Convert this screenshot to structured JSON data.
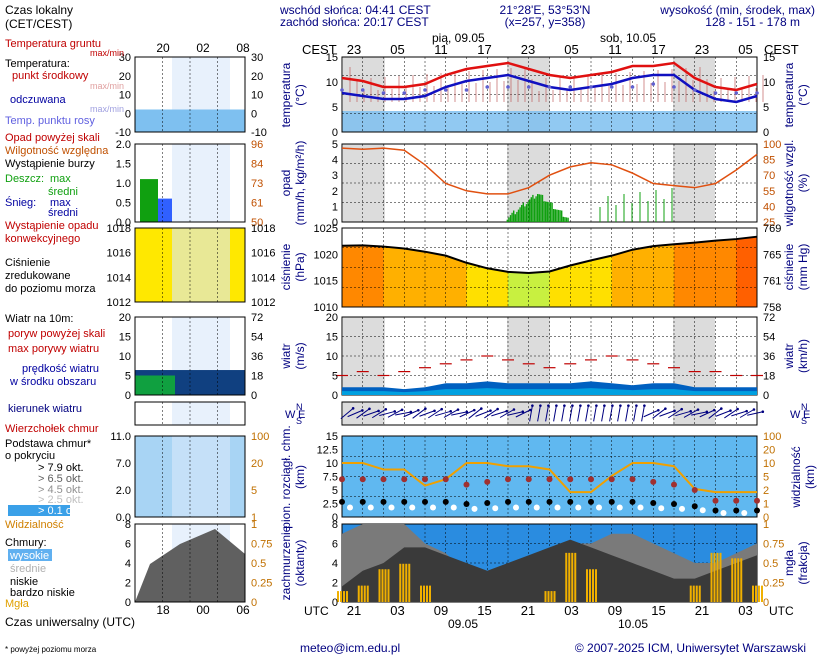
{
  "header": {
    "sunrise": "wschód słońca: 04:41 CEST",
    "sunset": "zachód słońca: 20:17 CEST",
    "coords": "21°28'E, 53°53'N",
    "grid": "(x=257,  y=358)",
    "elevation_label": "wysokość (min, środek, max)",
    "elevation_values": "128 - 151 - 178 m",
    "local_time_label": "Czas lokalny",
    "local_time_sub": "(CET/CEST)",
    "tz_left": "CEST",
    "tz_right": "CEST",
    "day1": "pią, 09.05",
    "day2": "sob, 10.05"
  },
  "footer": {
    "utc_label": "Czas uniwersalny (UTC)",
    "utc_left": "UTC",
    "utc_right": "UTC",
    "date1": "09.05",
    "date2": "10.05",
    "email": "meteo@icm.edu.pl",
    "copyright": "© 2007-2025 ICM, Uniwersytet Warszawski",
    "footnote": "* powyżej poziomu morza"
  },
  "colors": {
    "temperature": "#e01010",
    "dewpoint": "#1010c0",
    "ground": "#c01010",
    "precip_green": "#10a010",
    "pressure_yellow": "#ffe000",
    "pressure_orange": "#ff8000",
    "wind_blue": "#0060c0",
    "humidity": "#e05010",
    "night_shade": "#dcdcdc",
    "sky_blue": "#7ec0f0"
  },
  "legend": {
    "temp": {
      "ground": "Temperatura gruntu",
      "ground_sub": "max/min",
      "title": "Temperatura:",
      "mid": "punkt środkowy",
      "mid_sub": "max/min",
      "felt": "odczuwana",
      "felt_sub": "max/min",
      "dew": "Temp. punktu rosy"
    },
    "precip": {
      "above": "Opad powyżej skali",
      "rh": "Wilgotność względna",
      "storm": "Wystąpienie burzy",
      "rain": "Deszcz:",
      "rain_max": "max",
      "rain_mean": "średni",
      "snow": "Śnieg:",
      "snow_max": "max",
      "snow_mean": "średni",
      "conv1": "Wystąpienie opadu",
      "conv2": "konwekcyjnego"
    },
    "pressure": {
      "l1": "Ciśnienie",
      "l2": "zredukowane",
      "l3": "do poziomu morza"
    },
    "wind": {
      "title": "Wiatr na 10m:",
      "gust_above": "poryw powyżej skali",
      "gust": "max porywy wiatru",
      "mean1": "prędkość wiatru",
      "mean2": "w środku obszaru"
    },
    "dir": {
      "title": "kierunek wiatru"
    },
    "cloud": {
      "top": "Wierzchołek chmur",
      "base1": "Podstawa chmur*",
      "base2": "o pokryciu",
      "c79": "> 7.9 okt.",
      "c65": "> 6.5 okt.",
      "c45": "> 4.5 okt.",
      "c25": "> 2.5 okt.",
      "c01": "> 0.1 okt.",
      "vis": "Widzialność"
    },
    "clouds": {
      "title": "Chmury:",
      "high": "wysokie",
      "mid": "średnie",
      "low": "niskie",
      "vlow": "bardzo niskie",
      "fog": "Mgła"
    }
  },
  "axis_titles": {
    "temp_l": "temperatura",
    "temp_l2": "(°C)",
    "temp_r": "temperatura",
    "temp_r2": "(°C)",
    "precip_l": "opad",
    "precip_l2": "(mm/h, kg/m²/h)",
    "precip_r": "wilgotność wzgl.",
    "precip_r2": "(%)",
    "press_l": "ciśnienie",
    "press_l2": "(hPa)",
    "press_r": "ciśnienie",
    "press_r2": "(mm Hg)",
    "wind_l": "wiatr",
    "wind_l2": "(m/s)",
    "wind_r": "wiatr",
    "wind_r2": "(km/h)",
    "cloud_l": "pion. rozciągł. chm.",
    "cloud_l2": "(km)",
    "cloud_r": "widzialność",
    "cloud_r2": "(km)",
    "cov_l": "zachmurzenie",
    "cov_l2": "(oktanty)",
    "cov_r": "mgła",
    "cov_r2": "(frakcja)",
    "dir_l": "W",
    "dir_l2": "E",
    "dir_l3": "N",
    "dir_l4": "S"
  },
  "chart_data": [
    {
      "type": "line",
      "title": "temperatura",
      "x": [
        "18",
        "21",
        "00",
        "03",
        "06",
        "09",
        "12",
        "15",
        "18",
        "21",
        "00",
        "03",
        "06",
        "09",
        "12",
        "15",
        "18",
        "21",
        "00",
        "03",
        "06"
      ],
      "series": [
        {
          "name": "punkt środkowy",
          "values": [
            7,
            6,
            4,
            4,
            5,
            8,
            10,
            11,
            12,
            10,
            8,
            7,
            8,
            9,
            11,
            11,
            12,
            7,
            4,
            3,
            5
          ]
        },
        {
          "name": "odczuwana",
          "values": [
            2,
            1,
            0,
            0,
            1,
            4,
            6,
            7,
            8,
            6,
            4,
            3,
            4,
            5,
            7,
            8,
            8,
            3,
            0,
            -1,
            1
          ]
        },
        {
          "name": "Temp. punktu rosy",
          "values": [
            3,
            3,
            2,
            2,
            3,
            3,
            3,
            4,
            4,
            4,
            4,
            4,
            4,
            4,
            4,
            5,
            4,
            3,
            2,
            2,
            2
          ]
        }
      ],
      "ylim": [
        -10,
        30
      ],
      "ylim_r": [
        -10,
        30
      ],
      "yticks": [
        -10,
        -5,
        0,
        5,
        10,
        15,
        20,
        25,
        30
      ]
    },
    {
      "type": "bar",
      "title": "opad",
      "series": [
        {
          "name": "Wilgotność względna",
          "values": [
            96,
            95,
            96,
            94,
            80,
            62,
            55,
            52,
            52,
            58,
            70,
            78,
            82,
            80,
            72,
            62,
            60,
            58,
            62,
            75,
            90
          ]
        }
      ],
      "ylim": [
        0,
        5
      ],
      "ylim_r": [
        25,
        100
      ],
      "yticks": [
        0,
        1,
        2,
        3,
        4,
        5
      ],
      "yticks_r": [
        25,
        40,
        55,
        70,
        85,
        100
      ]
    },
    {
      "type": "area",
      "title": "ciśnienie",
      "series": [
        {
          "name": "Ciśnienie",
          "values": [
            1020.5,
            1020.6,
            1020.3,
            1019.8,
            1019.0,
            1018.0,
            1016.2,
            1014.8,
            1013.9,
            1013.6,
            1014.0,
            1015.5,
            1016.8,
            1018.0,
            1019.5,
            1020.4,
            1020.9,
            1021.3,
            1021.8,
            1022.2,
            1022.8
          ]
        }
      ],
      "ylim": [
        1005,
        1025
      ],
      "yticks": [
        1010,
        1015,
        1020,
        1025
      ],
      "yticks_r": [
        758,
        761,
        765,
        769
      ]
    },
    {
      "type": "line",
      "title": "wiatr",
      "series": [
        {
          "name": "prędkość wiatru",
          "values": [
            2,
            2,
            2,
            1.5,
            2,
            3,
            3,
            3.5,
            3,
            3,
            3,
            3,
            3.5,
            3,
            2.5,
            3,
            3,
            2,
            2,
            2,
            2
          ]
        },
        {
          "name": "max porywy wiatru",
          "values": [
            5,
            6,
            5,
            6,
            7,
            8,
            9,
            10,
            9,
            8,
            7,
            8,
            9,
            10,
            9,
            8,
            7,
            6,
            6,
            5,
            5
          ]
        }
      ],
      "ylim": [
        0,
        20
      ],
      "yticks": [
        0,
        5,
        10,
        15,
        20
      ],
      "yticks_r": [
        0,
        18,
        36,
        54,
        72
      ]
    },
    {
      "type": "scatter",
      "title": "pion. rozciągł. chm.",
      "series": [
        {
          "name": "Widzialność",
          "values": [
            10,
            10,
            8,
            8,
            3,
            5,
            10,
            10,
            9,
            9,
            8,
            1,
            1,
            6,
            10,
            10,
            9,
            2,
            1,
            1,
            1
          ]
        },
        {
          "name": "Wierzchołek chmur",
          "values": [
            7,
            7,
            7,
            7,
            7,
            7,
            6,
            6.5,
            7,
            7,
            7,
            7,
            7,
            7,
            7,
            6.5,
            6,
            5,
            3,
            3,
            3
          ]
        }
      ],
      "ylim": [
        0,
        15
      ],
      "yticks": [
        0,
        2.5,
        5,
        7.5,
        10,
        12.5,
        15
      ],
      "yticks_r": [
        0,
        1,
        2,
        5,
        10,
        20,
        100
      ]
    },
    {
      "type": "area",
      "title": "zachmurzenie",
      "series": [
        {
          "name": "niskie",
          "values": [
            2,
            4,
            5,
            7,
            7,
            6,
            5,
            4,
            5,
            6,
            7,
            8,
            7,
            6,
            5,
            4,
            3,
            3,
            4,
            5,
            6
          ]
        },
        {
          "name": "wysokie",
          "values": [
            7,
            8,
            8,
            8,
            6,
            5,
            3,
            2,
            3,
            4,
            5,
            6,
            6,
            7,
            7,
            6,
            5,
            4,
            4,
            5,
            6
          ]
        },
        {
          "name": "Mgła",
          "values": [
            0.2,
            0.3,
            0.6,
            0.7,
            0.3,
            0,
            0,
            0,
            0,
            0,
            0.2,
            0.9,
            0.6,
            0,
            0,
            0,
            0,
            0.3,
            0.9,
            0.8,
            0.3
          ]
        }
      ],
      "ylim": [
        0,
        8
      ],
      "yticks": [
        0,
        2,
        4,
        6,
        8
      ],
      "yticks_r": [
        0,
        0.25,
        0.5,
        0.75,
        1
      ]
    }
  ],
  "time_axis": {
    "local_top": [
      "23",
      "05",
      "11",
      "17",
      "23",
      "05",
      "11",
      "17",
      "23",
      "05"
    ],
    "utc_bottom": [
      "21",
      "03",
      "09",
      "15",
      "21",
      "03",
      "09",
      "15",
      "21",
      "03"
    ],
    "legend_local": [
      "20",
      "02",
      "08"
    ],
    "legend_utc": [
      "18",
      "00",
      "06"
    ]
  },
  "legend_axes": {
    "temp_l": [
      "30",
      "20",
      "10",
      "0",
      "-10"
    ],
    "temp_r": [
      "30",
      "20",
      "10",
      "0",
      "-10"
    ],
    "precip_l": [
      "2.0",
      "1.5",
      "1.0",
      "0.5",
      "0.0"
    ],
    "precip_r": [
      "96",
      "84",
      "73",
      "61",
      "50"
    ],
    "press_l": [
      "1018",
      "1016",
      "1014",
      "1012"
    ],
    "press_r": [
      "1018",
      "1016",
      "1014",
      "1012"
    ],
    "wind_l": [
      "20",
      "15",
      "10",
      "5",
      "0"
    ],
    "wind_r": [
      "72",
      "54",
      "36",
      "18",
      "0"
    ],
    "cloud_l": [
      "11.0",
      "7.0",
      "2.0",
      "0.0"
    ],
    "cloud_r": [
      "100",
      "20",
      "5",
      "1"
    ],
    "cov_l": [
      "8",
      "6",
      "4",
      "2",
      "0"
    ],
    "cov_r": [
      "1",
      "0.75",
      "0.5",
      "0.25",
      "0"
    ]
  }
}
